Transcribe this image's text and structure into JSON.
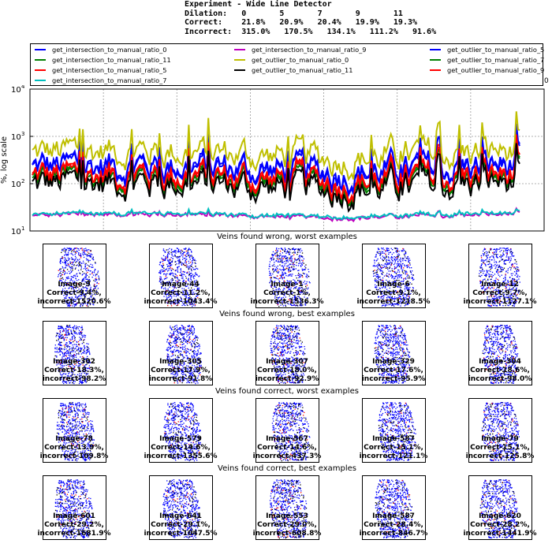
{
  "header": {
    "title": "Experiment - Wide Line Detector",
    "dilation_line": "Dilation:   0       5       7       9       11",
    "correct_line": "Correct:    21.8%   20.9%   20.4%   19.9%   19.3%",
    "incorrect_line": "Incorrect:  315.0%   170.5%   134.1%   111.2%   91.6%"
  },
  "legend_overflow": "0",
  "colors": {
    "blue": "#0000ff",
    "green": "#008000",
    "red": "#ff0000",
    "cyan": "#00bfbf",
    "magenta": "#bf00bf",
    "olive": "#bfbf00",
    "black": "#000000"
  },
  "chart_data": {
    "type": "line",
    "ylabel": "%, log scale",
    "yscale": "log",
    "ylim": [
      10,
      10000
    ],
    "y_ticks": [
      "10",
      "10",
      "10",
      "10"
    ],
    "y_tick_exponents": [
      "1",
      "2",
      "3",
      "4"
    ],
    "x_points": 300,
    "grid": true,
    "legend_placement": "above",
    "series": [
      {
        "name": "get_intersection_to_manual_ratio_0",
        "color": "#0000ff",
        "level": 220
      },
      {
        "name": "get_intersection_to_manual_ratio_11",
        "color": "#008000",
        "level": 110
      },
      {
        "name": "get_intersection_to_manual_ratio_5",
        "color": "#ff0000",
        "level": 130
      },
      {
        "name": "get_intersection_to_manual_ratio_7",
        "color": "#00bfbf",
        "level": 22
      },
      {
        "name": "get_intersection_to_manual_ratio_9",
        "color": "#bf00bf",
        "level": 21
      },
      {
        "name": "get_outlier_to_manual_ratio_0",
        "color": "#bfbf00",
        "level": 420
      },
      {
        "name": "get_outlier_to_manual_ratio_11",
        "color": "#000000",
        "level": 90
      },
      {
        "name": "get_outlier_to_manual_ratio_5",
        "color": "#0000ff",
        "level": 200
      },
      {
        "name": "get_outlier_to_manual_ratio_7",
        "color": "#008000",
        "level": 120
      },
      {
        "name": "get_outlier_to_manual_ratio_9",
        "color": "#ff0000",
        "level": 140
      }
    ]
  },
  "rows": [
    {
      "title": "Veins found wrong, worst examples",
      "items": [
        {
          "line1": "Image-9",
          "line2": "Correct-9.4%,",
          "line3": "incorrect-1520.6%"
        },
        {
          "line1": "Image-44",
          "line2": "Correct-11.2%,",
          "line3": "incorrect-1043.4%"
        },
        {
          "line1": "Image-1",
          "line2": "Correct-1%,",
          "line3": "incorrect-1536.3%"
        },
        {
          "line1": "Image-6",
          "line2": "Correct-9.1%,",
          "line3": "incorrect-1218.5%"
        },
        {
          "line1": "Image-12",
          "line2": "Correct-9.7%,",
          "line3": "incorrect-1127.1%"
        }
      ]
    },
    {
      "title": "Veins found wrong, best examples",
      "items": [
        {
          "line1": "Image-302",
          "line2": "Correct-18.3%,",
          "line3": "incorrect-98.2%"
        },
        {
          "line1": "Image-305",
          "line2": "Correct-17.9%,",
          "line3": "incorrect-91.8%"
        },
        {
          "line1": "Image-307",
          "line2": "Correct-18.0%,",
          "line3": "incorrect-92.9%"
        },
        {
          "line1": "Image-329",
          "line2": "Correct-17.6%,",
          "line3": "incorrect-95.9%"
        },
        {
          "line1": "Image-304",
          "line2": "Correct-18.6%,",
          "line3": "incorrect-98.0%"
        }
      ]
    },
    {
      "title": "Veins found correct, worst examples",
      "items": [
        {
          "line1": "Image-78",
          "line2": "Correct-13.9%,",
          "line3": "incorrect-109.8%"
        },
        {
          "line1": "Image-579",
          "line2": "Correct-14.6%,",
          "line3": "incorrect-1355.6%"
        },
        {
          "line1": "Image-567",
          "line2": "Correct-14.6%,",
          "line3": "incorrect-437.3%"
        },
        {
          "line1": "Image-587",
          "line2": "Correct-15.1%,",
          "line3": "incorrect-121.1%"
        },
        {
          "line1": "Image-79",
          "line2": "Correct-15.1%,",
          "line3": "incorrect-125.8%"
        }
      ]
    },
    {
      "title": "Veins found correct, best examples",
      "items": [
        {
          "line1": "Image-601",
          "line2": "Correct-29.2%,",
          "line3": "incorrect-1681.9%"
        },
        {
          "line1": "Image-641",
          "line2": "Correct-29.1%,",
          "line3": "incorrect-1047.5%"
        },
        {
          "line1": "Image-553",
          "line2": "Correct-29.0%,",
          "line3": "incorrect-608.8%"
        },
        {
          "line1": "Image-587",
          "line2": "Correct-28.4%,",
          "line3": "incorrect-846.7%"
        },
        {
          "line1": "Image-620",
          "line2": "Correct-28.2%,",
          "line3": "incorrect-1441.9%"
        }
      ]
    }
  ]
}
